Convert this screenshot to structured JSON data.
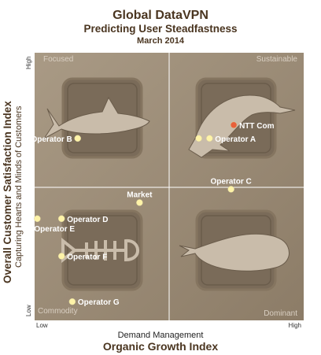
{
  "header": {
    "title": "Global DataVPN",
    "subtitle": "Predicting User Steadfastness",
    "date": "March 2014"
  },
  "chart_data": {
    "type": "scatter",
    "title": "Global DataVPN",
    "subtitle": "Predicting User Steadfastness",
    "xlabel": "Organic Growth Index",
    "xlabel_sub": "Demand Management",
    "ylabel": "Overall Customer  Satisfaction  Index",
    "ylabel_sub": "Capturing Hearts and Minds of Customers",
    "x_ticks": {
      "low": "Low",
      "high": "High"
    },
    "y_ticks": {
      "low": "Low",
      "high": "High"
    },
    "xlim": [
      0,
      1
    ],
    "ylim": [
      0,
      1
    ],
    "quadrants": [
      {
        "name": "Focused",
        "position": "top-left",
        "icon": "shark-icon"
      },
      {
        "name": "Sustainable",
        "position": "top-right",
        "icon": "dolphin-icon"
      },
      {
        "name": "Commodity",
        "position": "bottom-left",
        "icon": "fish-skeleton-icon"
      },
      {
        "name": "Dominant",
        "position": "bottom-right",
        "icon": "whale-icon"
      }
    ],
    "points": [
      {
        "label": "NTT Com",
        "x": 0.74,
        "y": 0.73,
        "color": "#e8603a",
        "label_side": "right"
      },
      {
        "label": "",
        "x": 0.61,
        "y": 0.68,
        "color": "#fff3a8",
        "label_side": "right"
      },
      {
        "label": "Operator A",
        "x": 0.65,
        "y": 0.68,
        "color": "#fff3a8",
        "label_side": "right"
      },
      {
        "label": "Operator B",
        "x": 0.16,
        "y": 0.68,
        "color": "#fff3a8",
        "label_side": "left"
      },
      {
        "label": "Operator C",
        "x": 0.73,
        "y": 0.49,
        "color": "#fff3a8",
        "label_side": "above"
      },
      {
        "label": "Market",
        "x": 0.39,
        "y": 0.44,
        "color": "#fff3a8",
        "label_side": "above"
      },
      {
        "label": "Operator D",
        "x": 0.1,
        "y": 0.38,
        "color": "#fff3a8",
        "label_side": "right"
      },
      {
        "label": "Operator E",
        "x": 0.01,
        "y": 0.38,
        "color": "#fff3a8",
        "label_side": "below"
      },
      {
        "label": "Operator F",
        "x": 0.1,
        "y": 0.24,
        "color": "#fff3a8",
        "label_side": "right"
      },
      {
        "label": "Operator G",
        "x": 0.14,
        "y": 0.07,
        "color": "#fff3a8",
        "label_side": "right"
      }
    ],
    "colors": {
      "panel": "#9b8b76",
      "panel_dark": "#857560",
      "icon_box": "#7a6b59",
      "icon_fill": "#c9bcaa",
      "grid_line": "#ffffff",
      "quadrant_text": "#d9cfc2",
      "label_text": "#ffffff"
    }
  }
}
